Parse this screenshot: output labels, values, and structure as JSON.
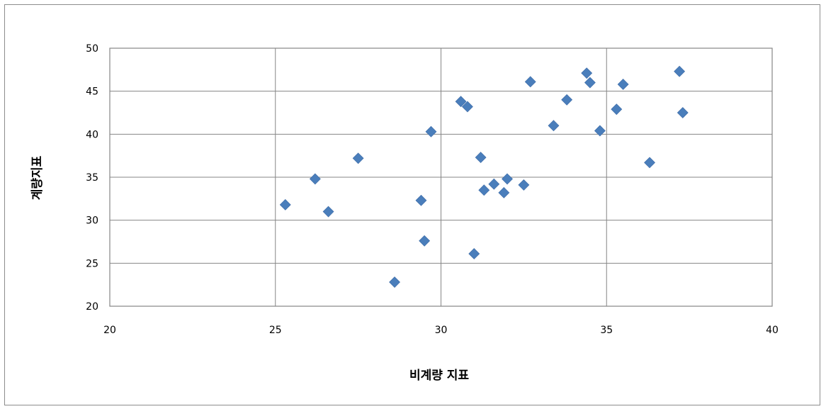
{
  "chart_data": {
    "type": "scatter",
    "title": "",
    "xlabel": "비계량 지표",
    "ylabel": "계량지표",
    "xlim": [
      20,
      40
    ],
    "ylim": [
      20,
      50
    ],
    "x_ticks": [
      20,
      25,
      30,
      35,
      40
    ],
    "y_ticks": [
      20,
      25,
      30,
      35,
      40,
      45,
      50
    ],
    "grid": true,
    "legend": "none",
    "marker": "diamond",
    "marker_color": "#4a7ebb",
    "series": [
      {
        "points": [
          {
            "x": 25.3,
            "y": 31.8
          },
          {
            "x": 26.2,
            "y": 34.8
          },
          {
            "x": 26.6,
            "y": 31.0
          },
          {
            "x": 27.5,
            "y": 37.2
          },
          {
            "x": 28.6,
            "y": 22.8
          },
          {
            "x": 29.4,
            "y": 32.3
          },
          {
            "x": 29.5,
            "y": 27.6
          },
          {
            "x": 29.7,
            "y": 40.3
          },
          {
            "x": 30.6,
            "y": 43.8
          },
          {
            "x": 30.8,
            "y": 43.2
          },
          {
            "x": 31.0,
            "y": 26.1
          },
          {
            "x": 31.2,
            "y": 37.3
          },
          {
            "x": 31.3,
            "y": 33.5
          },
          {
            "x": 31.6,
            "y": 34.2
          },
          {
            "x": 31.9,
            "y": 33.2
          },
          {
            "x": 32.0,
            "y": 34.8
          },
          {
            "x": 32.5,
            "y": 34.1
          },
          {
            "x": 32.7,
            "y": 46.1
          },
          {
            "x": 33.4,
            "y": 41.0
          },
          {
            "x": 33.8,
            "y": 44.0
          },
          {
            "x": 34.4,
            "y": 47.1
          },
          {
            "x": 34.5,
            "y": 46.0
          },
          {
            "x": 34.8,
            "y": 40.4
          },
          {
            "x": 35.3,
            "y": 42.9
          },
          {
            "x": 35.5,
            "y": 45.8
          },
          {
            "x": 36.3,
            "y": 36.7
          },
          {
            "x": 37.2,
            "y": 47.3
          },
          {
            "x": 37.3,
            "y": 42.5
          }
        ]
      }
    ]
  }
}
